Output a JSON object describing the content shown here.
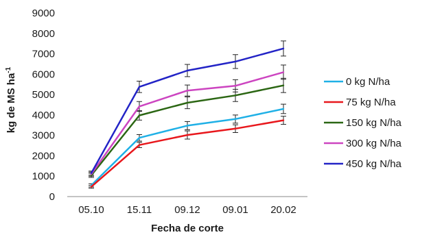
{
  "chart_data": {
    "type": "line",
    "categories": [
      "05.10",
      "15.11",
      "09.12",
      "09.01",
      "20.02"
    ],
    "xlabel": "Fecha de corte",
    "ylabel": "kg de MS ha",
    "ylabel_sup": "-1",
    "ylim": [
      0,
      9000
    ],
    "yticks": [
      "0",
      "1000",
      "2000",
      "3000",
      "4000",
      "5000",
      "6000",
      "7000",
      "8000",
      "9000"
    ],
    "grid": false,
    "legend_position": "right",
    "error_bars": true,
    "series": [
      {
        "name": "0 kg N/ha",
        "color": "#1fb0e6",
        "values": [
          550,
          2880,
          3480,
          3800,
          4300
        ],
        "errors": [
          80,
          160,
          200,
          200,
          230
        ]
      },
      {
        "name": "75 kg N/ha",
        "color": "#e8171c",
        "values": [
          480,
          2530,
          3020,
          3330,
          3740
        ],
        "errors": [
          70,
          130,
          200,
          190,
          200
        ]
      },
      {
        "name": "150 kg N/ha",
        "color": "#2b6613",
        "values": [
          1040,
          3980,
          4600,
          4960,
          5450
        ],
        "errors": [
          100,
          230,
          290,
          300,
          350
        ]
      },
      {
        "name": "300 kg N/ha",
        "color": "#cc44c0",
        "values": [
          1100,
          4420,
          5200,
          5430,
          6100
        ],
        "errors": [
          100,
          240,
          270,
          300,
          350
        ]
      },
      {
        "name": "450 kg N/ha",
        "color": "#2223c6",
        "values": [
          1150,
          5380,
          6180,
          6620,
          7260
        ],
        "errors": [
          100,
          280,
          300,
          340,
          370
        ]
      }
    ]
  }
}
